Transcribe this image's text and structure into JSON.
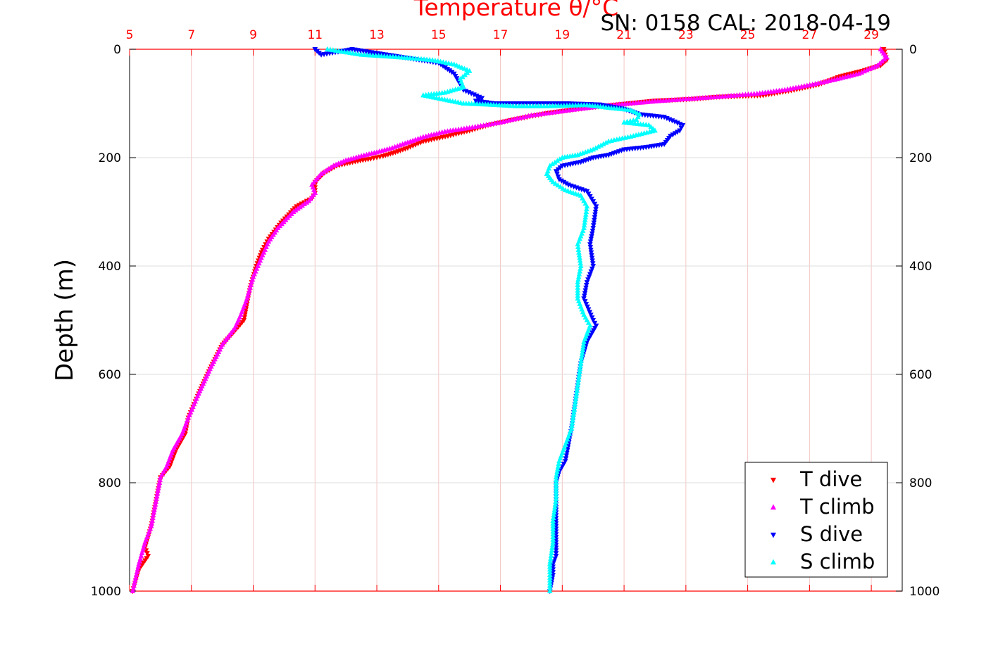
{
  "chart_data": {
    "type": "scatter",
    "title": "SN: 0158  CAL: 2018-04-19",
    "top_axis_label": "Temperature θ/°C",
    "ylabel": "Depth (m)",
    "xlim": [
      5,
      30
    ],
    "ylim": [
      0,
      1000
    ],
    "y_reversed": true,
    "x_ticks": [
      "5",
      "7",
      "9",
      "11",
      "13",
      "15",
      "17",
      "19",
      "21",
      "23",
      "25",
      "27",
      "29"
    ],
    "y_ticks": [
      "0",
      "200",
      "400",
      "600",
      "800",
      "1000"
    ],
    "grid": true,
    "legend_position": "bottom-right",
    "colors": {
      "top_axis": "#ff0000",
      "t_dive": "#ff0000",
      "t_climb": "#ff00ff",
      "s_dive": "#0000ff",
      "s_climb": "#00ffff",
      "grid_vertical": "#f4c6c6",
      "grid_horizontal": "#dddddd"
    },
    "series": [
      {
        "name": "T dive",
        "marker": "triangle-down",
        "color": "#ff0000",
        "x": [
          29.4,
          29.5,
          29.3,
          28.7,
          28.0,
          27.3,
          26.5,
          25.5,
          24.0,
          23.2,
          22.0,
          21.5,
          20.8,
          19.8,
          18.5,
          17.4,
          16.6,
          16.0,
          15.3,
          14.5,
          14.0,
          13.6,
          13.2,
          12.8,
          12.3,
          11.7,
          11.3,
          11.0,
          11.0,
          10.9,
          10.4,
          9.9,
          9.5,
          9.3,
          9.1,
          8.9,
          8.8,
          8.7,
          8.4,
          8.0,
          7.6,
          7.2,
          6.9,
          6.8,
          6.5,
          6.3,
          6.0,
          5.9,
          5.8,
          5.7,
          5.6,
          5.5,
          5.6,
          5.3,
          5.1
        ],
        "y": [
          0,
          20,
          30,
          40,
          50,
          65,
          75,
          85,
          88,
          92,
          95,
          98,
          102,
          108,
          118,
          130,
          140,
          150,
          160,
          170,
          182,
          190,
          197,
          202,
          207,
          215,
          228,
          245,
          265,
          275,
          290,
          320,
          350,
          370,
          400,
          440,
          470,
          500,
          520,
          545,
          590,
          640,
          680,
          710,
          740,
          770,
          790,
          820,
          850,
          880,
          900,
          920,
          935,
          960,
          1000
        ]
      },
      {
        "name": "T climb",
        "marker": "triangle-up",
        "color": "#ff00ff",
        "x": [
          29.3,
          29.5,
          29.2,
          28.6,
          27.9,
          27.1,
          26.2,
          25.3,
          24.0,
          23.0,
          22.0,
          21.2,
          20.4,
          19.3,
          18.0,
          17.0,
          16.0,
          15.2,
          14.5,
          14.0,
          13.5,
          13.0,
          12.5,
          12.0,
          11.6,
          11.2,
          10.9,
          11.0,
          10.8,
          10.3,
          9.8,
          9.5,
          9.3,
          9.0,
          8.8,
          8.6,
          8.4,
          8.0,
          7.6,
          7.2,
          6.9,
          6.7,
          6.4,
          6.2,
          6.0,
          5.9,
          5.8,
          5.7,
          5.5,
          5.3,
          5.1
        ],
        "y": [
          0,
          15,
          30,
          45,
          55,
          65,
          75,
          82,
          88,
          92,
          96,
          100,
          104,
          112,
          122,
          135,
          145,
          152,
          162,
          172,
          182,
          190,
          197,
          205,
          215,
          230,
          250,
          265,
          280,
          300,
          330,
          355,
          380,
          420,
          460,
          490,
          515,
          545,
          590,
          640,
          680,
          710,
          740,
          770,
          790,
          820,
          850,
          880,
          910,
          950,
          1000
        ]
      },
      {
        "name": "S dive",
        "marker": "triangle-down",
        "color": "#0000ff",
        "x": [
          11.0,
          11.2,
          12.2,
          15.0,
          15.5,
          15.8,
          16.4,
          16.2,
          16.8,
          17.5,
          18.5,
          19.2,
          20.2,
          21.0,
          21.5,
          22.3,
          22.9,
          22.8,
          22.5,
          22.3,
          21.8,
          21.0,
          20.5,
          20.0,
          19.6,
          19.0,
          18.8,
          18.9,
          19.2,
          19.8,
          20.1,
          20.0,
          19.9,
          20.0,
          19.8,
          19.7,
          20.0,
          20.1,
          19.8,
          19.6,
          19.5,
          19.4,
          19.3,
          19.2,
          19.1,
          18.9,
          18.8,
          18.8,
          18.8,
          18.8,
          18.8,
          18.7,
          18.7,
          18.6
        ],
        "y": [
          0,
          10,
          0,
          25,
          45,
          75,
          90,
          95,
          100,
          100,
          100,
          100,
          102,
          110,
          120,
          125,
          140,
          150,
          160,
          175,
          180,
          185,
          195,
          200,
          208,
          215,
          225,
          240,
          250,
          262,
          290,
          330,
          360,
          400,
          430,
          460,
          500,
          510,
          540,
          580,
          620,
          660,
          700,
          730,
          760,
          780,
          800,
          840,
          880,
          920,
          935,
          950,
          970,
          1000
        ]
      },
      {
        "name": "S climb",
        "marker": "triangle-up",
        "color": "#00ffff",
        "x": [
          11.4,
          12.5,
          13.8,
          14.8,
          15.5,
          16.0,
          15.7,
          15.8,
          15.2,
          14.5,
          15.8,
          16.6,
          17.5,
          18.5,
          19.8,
          20.5,
          21.2,
          21.5,
          21.4,
          21.0,
          21.8,
          22.0,
          21.3,
          20.5,
          20.0,
          19.5,
          19.0,
          18.6,
          18.5,
          18.7,
          19.1,
          19.6,
          19.8,
          19.7,
          19.5,
          19.6,
          19.5,
          19.5,
          19.7,
          19.9,
          19.7,
          19.6,
          19.5,
          19.4,
          19.3,
          19.1,
          18.9,
          18.8,
          18.8,
          18.7,
          18.7,
          18.6,
          18.6
        ],
        "y": [
          0,
          10,
          15,
          20,
          28,
          40,
          55,
          70,
          80,
          85,
          100,
          102,
          105,
          105,
          103,
          108,
          112,
          120,
          130,
          135,
          140,
          150,
          160,
          170,
          185,
          195,
          200,
          215,
          230,
          245,
          260,
          270,
          290,
          330,
          360,
          400,
          430,
          460,
          490,
          510,
          540,
          580,
          620,
          660,
          700,
          730,
          760,
          790,
          830,
          870,
          910,
          950,
          1000
        ]
      }
    ]
  }
}
